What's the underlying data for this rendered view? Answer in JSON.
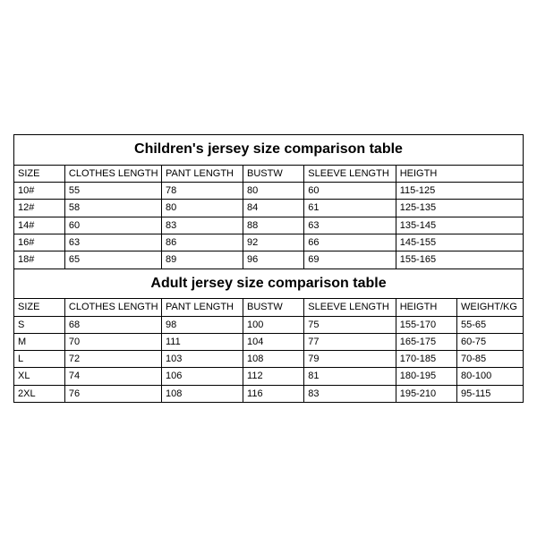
{
  "children_table": {
    "title": "Children's jersey size comparison table",
    "columns": [
      "SIZE",
      "CLOTHES LENGTH",
      "PANT LENGTH",
      "BUSTW",
      "SLEEVE LENGTH",
      "HEIGTH"
    ],
    "rows": [
      [
        "10#",
        "55",
        "78",
        "80",
        "60",
        "115-125"
      ],
      [
        "12#",
        "58",
        "80",
        "84",
        "61",
        "125-135"
      ],
      [
        "14#",
        "60",
        "83",
        "88",
        "63",
        "135-145"
      ],
      [
        "16#",
        "63",
        "86",
        "92",
        "66",
        "145-155"
      ],
      [
        "18#",
        "65",
        "89",
        "96",
        "69",
        "155-165"
      ]
    ]
  },
  "adult_table": {
    "title": "Adult jersey size comparison table",
    "columns": [
      "SIZE",
      "CLOTHES LENGTH",
      "PANT LENGTH",
      "BUSTW",
      "SLEEVE LENGTH",
      "HEIGTH",
      "WEIGHT/KG"
    ],
    "rows": [
      [
        "S",
        "68",
        "98",
        "100",
        "75",
        "155-170",
        "55-65"
      ],
      [
        "M",
        "70",
        "111",
        "104",
        "77",
        "165-175",
        "60-75"
      ],
      [
        "L",
        "72",
        "103",
        "108",
        "79",
        "170-185",
        "70-85"
      ],
      [
        "XL",
        "74",
        "106",
        "112",
        "81",
        "180-195",
        "80-100"
      ],
      [
        "2XL",
        "76",
        "108",
        "116",
        "83",
        "195-210",
        "95-115"
      ]
    ]
  },
  "style": {
    "border_color": "#000000",
    "background_color": "#ffffff",
    "title_fontsize": 16,
    "cell_fontsize": 11,
    "font_family": "Arial"
  }
}
